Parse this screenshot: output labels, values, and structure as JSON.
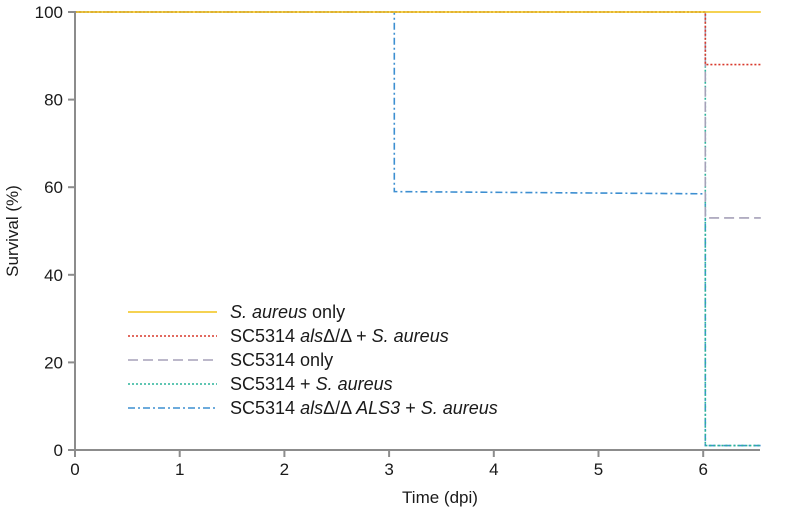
{
  "chart_data": {
    "type": "line",
    "step": true,
    "title": "",
    "xlabel": "Time (dpi)",
    "ylabel": "Survival (%)",
    "xlim": [
      0,
      6.6
    ],
    "ylim": [
      0,
      100
    ],
    "x_ticks": [
      "0",
      "1",
      "2",
      "3",
      "4",
      "5",
      "6"
    ],
    "y_ticks": [
      "0",
      "20",
      "40",
      "60",
      "80",
      "100"
    ],
    "legend_position": "lower-left",
    "series": [
      {
        "name": "S. aureus only",
        "legend_parts": [
          {
            "text": "S. aureus",
            "italic": true
          },
          {
            "text": " only",
            "italic": false
          }
        ],
        "color": "#f2c318",
        "style": "solid",
        "points": [
          [
            0,
            100
          ],
          [
            6.55,
            100
          ]
        ]
      },
      {
        "name": "SC5314 alsΔ/Δ + S. aureus",
        "legend_parts": [
          {
            "text": "SC5314 ",
            "italic": false
          },
          {
            "text": "als",
            "italic": true
          },
          {
            "text": "Δ/Δ + ",
            "italic": false
          },
          {
            "text": "S. aureus",
            "italic": true
          }
        ],
        "color": "#d9382b",
        "style": "dotted",
        "points": [
          [
            0,
            100
          ],
          [
            6.02,
            100
          ],
          [
            6.02,
            88
          ],
          [
            6.55,
            88
          ]
        ]
      },
      {
        "name": "SC5314 only",
        "legend_parts": [
          {
            "text": "SC5314 only",
            "italic": false
          }
        ],
        "color": "#a5a1b8",
        "style": "dashed",
        "points": [
          [
            0,
            100
          ],
          [
            6.02,
            100
          ],
          [
            6.02,
            53
          ],
          [
            6.55,
            53
          ]
        ]
      },
      {
        "name": "SC5314 + S. aureus",
        "legend_parts": [
          {
            "text": "SC5314 + ",
            "italic": false
          },
          {
            "text": "S. aureus",
            "italic": true
          }
        ],
        "color": "#2bb39a",
        "style": "dotted",
        "points": [
          [
            0,
            100
          ],
          [
            6.02,
            100
          ],
          [
            6.02,
            1
          ],
          [
            6.55,
            1
          ]
        ]
      },
      {
        "name": "SC5314 alsΔ/Δ ALS3 + S. aureus",
        "legend_parts": [
          {
            "text": "SC5314 ",
            "italic": false
          },
          {
            "text": "als",
            "italic": true
          },
          {
            "text": "Δ/Δ ",
            "italic": false
          },
          {
            "text": "ALS3",
            "italic": true
          },
          {
            "text": " + ",
            "italic": false
          },
          {
            "text": "S. aureus",
            "italic": true
          }
        ],
        "color": "#3d8fd1",
        "style": "dashdot",
        "points": [
          [
            0,
            100
          ],
          [
            3.05,
            100
          ],
          [
            3.05,
            59
          ],
          [
            6.02,
            58.5
          ],
          [
            6.02,
            1
          ],
          [
            6.55,
            1
          ]
        ]
      }
    ]
  }
}
